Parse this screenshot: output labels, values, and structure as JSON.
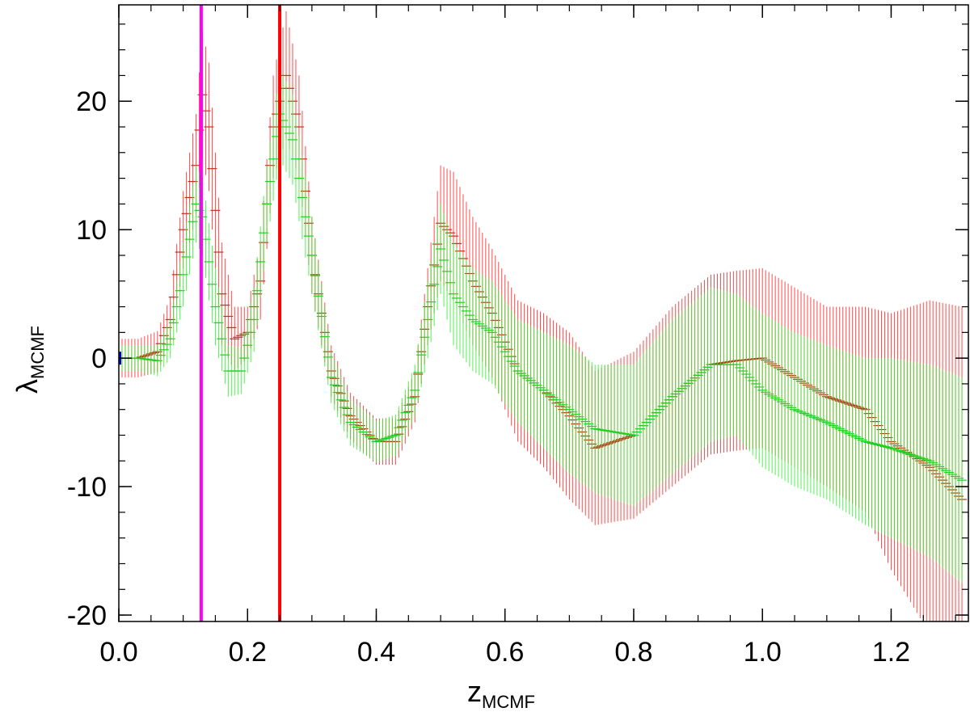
{
  "chart_data": {
    "type": "scatter",
    "xlabel": "z",
    "xlabel_sub": "MCMF",
    "ylabel": "λ",
    "ylabel_sub": "MCMF",
    "xlim": [
      0.0,
      1.32
    ],
    "ylim": [
      -20.5,
      27.5
    ],
    "x_ticks": [
      0.0,
      0.2,
      0.4,
      0.6,
      0.8,
      1.0,
      1.2
    ],
    "x_tick_labels": [
      "0.0",
      "0.2",
      "0.4",
      "0.6",
      "0.8",
      "1.0",
      "1.2"
    ],
    "x_minor_step": 0.05,
    "y_ticks": [
      -20,
      -10,
      0,
      10,
      20
    ],
    "y_tick_labels": [
      "-20",
      "-10",
      "0",
      "10",
      "20"
    ],
    "y_minor_step": 2,
    "grid": false,
    "vertical_lines": [
      {
        "x": 0.128,
        "color": "#ff00ff"
      },
      {
        "x": 0.25,
        "color": "#ff0000"
      }
    ],
    "left_marker": {
      "x": 0.0,
      "y": 0.0,
      "color": "#0000cc"
    },
    "errbar_colors": {
      "red": "#ff2a2a",
      "green": "#33ee33",
      "red_cross": "#c0301a",
      "green_cross": "#22cc22"
    },
    "series": [
      {
        "color": "#ff2a2a",
        "x_step": 0.005,
        "points": [
          [
            0.0,
            0.0,
            1.5
          ],
          [
            0.03,
            0.0,
            1.5
          ],
          [
            0.06,
            0.5,
            1.6
          ],
          [
            0.08,
            3.0,
            1.8
          ],
          [
            0.1,
            10.0,
            3.0
          ],
          [
            0.12,
            15.0,
            4.0
          ],
          [
            0.13,
            20.5,
            5.0
          ],
          [
            0.14,
            18.0,
            5.0
          ],
          [
            0.16,
            5.0,
            4.0
          ],
          [
            0.18,
            1.5,
            2.5
          ],
          [
            0.2,
            2.0,
            2.0
          ],
          [
            0.22,
            6.0,
            3.0
          ],
          [
            0.24,
            18.0,
            4.0
          ],
          [
            0.26,
            22.0,
            5.0
          ],
          [
            0.28,
            18.0,
            4.0
          ],
          [
            0.3,
            8.0,
            3.0
          ],
          [
            0.33,
            -1.0,
            2.0
          ],
          [
            0.36,
            -4.5,
            1.8
          ],
          [
            0.4,
            -6.5,
            1.8
          ],
          [
            0.43,
            -6.5,
            1.8
          ],
          [
            0.46,
            -3.0,
            2.0
          ],
          [
            0.48,
            4.0,
            3.0
          ],
          [
            0.5,
            10.5,
            4.5
          ],
          [
            0.52,
            9.5,
            5.0
          ],
          [
            0.55,
            6.0,
            5.0
          ],
          [
            0.58,
            3.5,
            5.0
          ],
          [
            0.62,
            -1.0,
            5.5
          ],
          [
            0.66,
            -2.5,
            6.0
          ],
          [
            0.7,
            -4.5,
            6.5
          ],
          [
            0.74,
            -7.0,
            6.0
          ],
          [
            0.8,
            -6.0,
            6.5
          ],
          [
            0.86,
            -3.0,
            7.0
          ],
          [
            0.92,
            -0.5,
            7.0
          ],
          [
            0.96,
            -0.2,
            7.0
          ],
          [
            1.0,
            0.0,
            7.0
          ],
          [
            1.05,
            -1.5,
            7.0
          ],
          [
            1.1,
            -3.0,
            7.0
          ],
          [
            1.16,
            -4.0,
            8.0
          ],
          [
            1.2,
            -6.5,
            10.0
          ],
          [
            1.26,
            -8.5,
            13.0
          ],
          [
            1.31,
            -11.0,
            15.0
          ]
        ]
      },
      {
        "color": "#33ee33",
        "x_step": 0.005,
        "points": [
          [
            0.0,
            0.0,
            1.0
          ],
          [
            0.03,
            0.0,
            1.0
          ],
          [
            0.06,
            -0.2,
            1.2
          ],
          [
            0.08,
            1.5,
            1.5
          ],
          [
            0.1,
            6.5,
            2.5
          ],
          [
            0.12,
            12.0,
            3.0
          ],
          [
            0.13,
            11.0,
            3.0
          ],
          [
            0.15,
            4.0,
            3.0
          ],
          [
            0.17,
            -1.0,
            2.0
          ],
          [
            0.19,
            -1.0,
            1.8
          ],
          [
            0.21,
            3.0,
            2.5
          ],
          [
            0.23,
            12.0,
            3.0
          ],
          [
            0.25,
            19.0,
            3.5
          ],
          [
            0.27,
            17.0,
            3.5
          ],
          [
            0.3,
            8.0,
            3.0
          ],
          [
            0.33,
            -1.5,
            2.0
          ],
          [
            0.36,
            -5.0,
            1.8
          ],
          [
            0.4,
            -6.5,
            1.6
          ],
          [
            0.43,
            -6.0,
            1.6
          ],
          [
            0.46,
            -2.5,
            2.0
          ],
          [
            0.48,
            3.0,
            3.0
          ],
          [
            0.5,
            8.5,
            3.5
          ],
          [
            0.52,
            5.0,
            4.0
          ],
          [
            0.55,
            3.0,
            4.0
          ],
          [
            0.58,
            2.0,
            4.0
          ],
          [
            0.62,
            -1.0,
            4.0
          ],
          [
            0.66,
            -2.5,
            4.5
          ],
          [
            0.7,
            -4.0,
            5.0
          ],
          [
            0.74,
            -5.5,
            5.0
          ],
          [
            0.8,
            -6.0,
            5.5
          ],
          [
            0.86,
            -3.0,
            6.0
          ],
          [
            0.92,
            -0.5,
            6.0
          ],
          [
            0.96,
            -0.5,
            5.5
          ],
          [
            1.0,
            -2.5,
            6.0
          ],
          [
            1.05,
            -4.0,
            6.0
          ],
          [
            1.1,
            -5.0,
            6.0
          ],
          [
            1.16,
            -6.5,
            6.5
          ],
          [
            1.2,
            -7.0,
            7.0
          ],
          [
            1.26,
            -8.0,
            7.5
          ],
          [
            1.31,
            -9.5,
            8.0
          ]
        ]
      }
    ]
  }
}
